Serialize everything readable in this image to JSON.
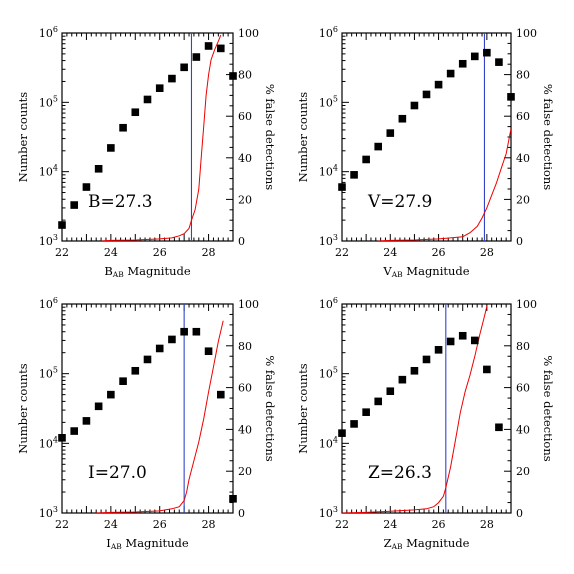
{
  "colors": {
    "points": "#000000",
    "false_detection_curve": "#ee0000",
    "limit_line": "#3344cc"
  },
  "chart_data": [
    {
      "type": "scatter",
      "band": "B",
      "annotation": "B=27.3",
      "limit_mag": 27.3,
      "xlabel": "B",
      "xlabel_sub": "AB",
      "xlabel_rest": " Magnitude",
      "ylabel_left": "Number counts",
      "ylabel_right": "% false detections",
      "xlim": [
        22,
        29
      ],
      "ylim_left": [
        1000,
        1000000
      ],
      "ylim_right": [
        0,
        100
      ],
      "yscale_left": "log",
      "xticks": [
        22,
        24,
        26,
        28
      ],
      "yticks_left": [
        3,
        4,
        5,
        6
      ],
      "yticks_right": [
        0,
        20,
        40,
        60,
        80,
        100
      ],
      "counts": {
        "x": [
          22,
          22.5,
          23,
          23.5,
          24,
          24.5,
          25,
          25.5,
          26,
          26.5,
          27,
          27.5,
          28,
          28.5,
          29
        ],
        "y": [
          1700,
          3300,
          6000,
          11000,
          22000,
          43000,
          72000,
          110000,
          160000,
          220000,
          320000,
          450000,
          650000,
          600000,
          240000
        ]
      },
      "false_detections": {
        "x": [
          23.6,
          24,
          25,
          26,
          26.5,
          26.8,
          27,
          27.2,
          27.3,
          27.45,
          27.6,
          27.7,
          27.8,
          27.9,
          28,
          28.1,
          28.25,
          28.4,
          28.5
        ],
        "y": [
          0,
          0.3,
          0.5,
          1,
          1.5,
          2.5,
          3.5,
          6,
          10,
          15,
          25,
          40,
          55,
          70,
          80,
          87,
          92,
          96,
          99
        ]
      }
    },
    {
      "type": "scatter",
      "band": "V",
      "annotation": "V=27.9",
      "limit_mag": 27.9,
      "xlabel": "V",
      "xlabel_sub": "AB",
      "xlabel_rest": " Magnitude",
      "ylabel_left": "Number counts",
      "ylabel_right": "% false detections",
      "xlim": [
        22,
        29
      ],
      "ylim_left": [
        1000,
        1000000
      ],
      "ylim_right": [
        0,
        100
      ],
      "yscale_left": "log",
      "xticks": [
        22,
        24,
        26,
        28
      ],
      "yticks_left": [
        3,
        4,
        5,
        6
      ],
      "yticks_right": [
        0,
        20,
        40,
        60,
        80,
        100
      ],
      "counts": {
        "x": [
          22,
          22.5,
          23,
          23.5,
          24,
          24.5,
          25,
          25.5,
          26,
          26.5,
          27,
          27.5,
          28,
          28.5,
          29
        ],
        "y": [
          6000,
          9000,
          15000,
          23000,
          36000,
          58000,
          90000,
          130000,
          180000,
          260000,
          360000,
          460000,
          520000,
          380000,
          120000
        ]
      },
      "false_detections": {
        "x": [
          23.5,
          24,
          25,
          26,
          26.5,
          27,
          27.3,
          27.6,
          27.8,
          28,
          28.2,
          28.4,
          28.6,
          28.8,
          29
        ],
        "y": [
          0,
          0.3,
          0.5,
          1,
          1.5,
          2,
          4,
          7,
          11,
          16,
          22,
          28,
          35,
          42,
          54
        ]
      }
    },
    {
      "type": "scatter",
      "band": "I",
      "annotation": "I=27.0",
      "limit_mag": 27.0,
      "xlabel": "I",
      "xlabel_sub": "AB",
      "xlabel_rest": " Magnitude",
      "ylabel_left": "Number counts",
      "ylabel_right": "% false detections",
      "xlim": [
        22,
        29
      ],
      "ylim_left": [
        1000,
        1000000
      ],
      "ylim_right": [
        0,
        100
      ],
      "yscale_left": "log",
      "xticks": [
        22,
        24,
        26,
        28
      ],
      "yticks_left": [
        3,
        4,
        5,
        6
      ],
      "yticks_right": [
        0,
        20,
        40,
        60,
        80,
        100
      ],
      "counts": {
        "x": [
          22,
          22.5,
          23,
          23.5,
          24,
          24.5,
          25,
          25.5,
          26,
          26.5,
          27,
          27.5,
          28,
          28.5,
          29
        ],
        "y": [
          12000,
          15000,
          21000,
          34000,
          50000,
          78000,
          110000,
          160000,
          230000,
          310000,
          400000,
          400000,
          210000,
          50000,
          1600
        ]
      },
      "false_detections": {
        "x": [
          23.4,
          24,
          25,
          26,
          26.5,
          26.8,
          27,
          27.1,
          27.2,
          27.4,
          27.6,
          27.8,
          28,
          28.2,
          28.4,
          28.6
        ],
        "y": [
          0,
          0.3,
          0.5,
          1,
          2,
          3,
          6,
          10,
          16,
          25,
          34,
          45,
          58,
          70,
          82,
          92
        ]
      }
    },
    {
      "type": "scatter",
      "band": "Z",
      "annotation": "Z=26.3",
      "limit_mag": 26.3,
      "xlabel": "Z",
      "xlabel_sub": "AB",
      "xlabel_rest": " Magnitude",
      "ylabel_left": "Number counts",
      "ylabel_right": "% false detections",
      "xlim": [
        22,
        29
      ],
      "ylim_left": [
        1000,
        1000000
      ],
      "ylim_right": [
        0,
        100
      ],
      "yscale_left": "log",
      "xticks": [
        22,
        24,
        26,
        28
      ],
      "yticks_left": [
        3,
        4,
        5,
        6
      ],
      "yticks_right": [
        0,
        20,
        40,
        60,
        80,
        100
      ],
      "counts": {
        "x": [
          22,
          22.5,
          23,
          23.5,
          24,
          24.5,
          25,
          25.5,
          26,
          26.5,
          27,
          27.5,
          28,
          28.5
        ],
        "y": [
          14000,
          19000,
          28000,
          40000,
          56000,
          82000,
          110000,
          160000,
          220000,
          290000,
          350000,
          300000,
          115000,
          17000
        ]
      },
      "false_detections": {
        "x": [
          22,
          23,
          24,
          25,
          25.5,
          25.8,
          26,
          26.2,
          26.3,
          26.5,
          26.7,
          26.9,
          27.1,
          27.3,
          27.5,
          27.7,
          27.9,
          28
        ],
        "y": [
          0,
          0.3,
          0.8,
          1.5,
          2,
          3,
          5,
          8,
          12,
          22,
          35,
          48,
          58,
          66,
          75,
          85,
          94,
          99
        ]
      }
    }
  ]
}
